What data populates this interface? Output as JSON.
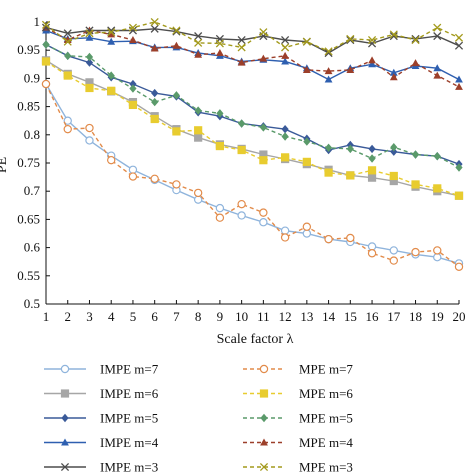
{
  "chart_data": {
    "type": "line",
    "title": "",
    "xlabel": "Scale factor λ",
    "ylabel": "PE",
    "xlim": [
      1,
      20
    ],
    "ylim": [
      0.5,
      1.0
    ],
    "x": [
      1,
      2,
      3,
      4,
      5,
      6,
      7,
      8,
      9,
      10,
      11,
      12,
      13,
      14,
      15,
      16,
      17,
      18,
      19,
      20
    ],
    "x_ticks": [
      "1",
      "2",
      "3",
      "4",
      "5",
      "6",
      "7",
      "8",
      "9",
      "10",
      "11",
      "12",
      "13",
      "14",
      "15",
      "16",
      "17",
      "18",
      "19",
      "20"
    ],
    "y_ticks": [
      "0.5",
      "0.55",
      "0.6",
      "0.65",
      "0.7",
      "0.75",
      "0.8",
      "0.85",
      "0.9",
      "0.95",
      "1"
    ],
    "grid": false,
    "legend_position": "bottom",
    "series": [
      {
        "name": "IMPE m=7",
        "color": "#8fb4dc",
        "dashed": false,
        "marker": "circle-open",
        "values": [
          0.89,
          0.825,
          0.79,
          0.763,
          0.738,
          0.72,
          0.702,
          0.685,
          0.67,
          0.657,
          0.645,
          0.63,
          0.625,
          0.615,
          0.61,
          0.602,
          0.595,
          0.588,
          0.583,
          0.572
        ]
      },
      {
        "name": "MPE m=7",
        "color": "#e28b4a",
        "dashed": true,
        "marker": "circle-open",
        "values": [
          0.89,
          0.81,
          0.812,
          0.755,
          0.726,
          0.722,
          0.712,
          0.697,
          0.653,
          0.677,
          0.662,
          0.618,
          0.637,
          0.615,
          0.617,
          0.59,
          0.577,
          0.592,
          0.595,
          0.566
        ]
      },
      {
        "name": "IMPE m=6",
        "color": "#a6a6a6",
        "dashed": false,
        "marker": "square",
        "values": [
          0.932,
          0.908,
          0.893,
          0.877,
          0.858,
          0.833,
          0.81,
          0.795,
          0.783,
          0.775,
          0.765,
          0.757,
          0.748,
          0.738,
          0.728,
          0.724,
          0.718,
          0.708,
          0.7,
          0.692
        ]
      },
      {
        "name": "MPE m=6",
        "color": "#e8cc2f",
        "dashed": true,
        "marker": "square",
        "values": [
          0.93,
          0.905,
          0.883,
          0.878,
          0.853,
          0.828,
          0.806,
          0.808,
          0.78,
          0.773,
          0.755,
          0.76,
          0.752,
          0.733,
          0.728,
          0.737,
          0.727,
          0.712,
          0.705,
          0.692
        ]
      },
      {
        "name": "IMPE m=5",
        "color": "#3a5a99",
        "dashed": false,
        "marker": "diamond",
        "values": [
          0.96,
          0.94,
          0.928,
          0.902,
          0.89,
          0.874,
          0.868,
          0.84,
          0.833,
          0.82,
          0.815,
          0.81,
          0.793,
          0.773,
          0.782,
          0.775,
          0.77,
          0.765,
          0.762,
          0.748
        ]
      },
      {
        "name": "MPE m=5",
        "color": "#5a9a6a",
        "dashed": true,
        "marker": "diamond",
        "values": [
          0.96,
          0.94,
          0.938,
          0.905,
          0.882,
          0.858,
          0.87,
          0.843,
          0.838,
          0.82,
          0.813,
          0.797,
          0.788,
          0.777,
          0.775,
          0.758,
          0.778,
          0.765,
          0.762,
          0.742
        ]
      },
      {
        "name": "IMPE m=4",
        "color": "#2e5fb0",
        "dashed": false,
        "marker": "triangle",
        "values": [
          0.985,
          0.97,
          0.972,
          0.965,
          0.966,
          0.955,
          0.955,
          0.945,
          0.94,
          0.93,
          0.933,
          0.93,
          0.918,
          0.898,
          0.918,
          0.925,
          0.91,
          0.922,
          0.918,
          0.898
        ]
      },
      {
        "name": "MPE m=4",
        "color": "#9c3f2a",
        "dashed": true,
        "marker": "triangle",
        "values": [
          0.99,
          0.968,
          0.985,
          0.978,
          0.968,
          0.953,
          0.958,
          0.942,
          0.945,
          0.928,
          0.935,
          0.94,
          0.915,
          0.913,
          0.915,
          0.932,
          0.902,
          0.927,
          0.905,
          0.885
        ]
      },
      {
        "name": "IMPE m=3",
        "color": "#4d4d4d",
        "dashed": false,
        "marker": "x",
        "values": [
          0.99,
          0.98,
          0.985,
          0.985,
          0.985,
          0.988,
          0.983,
          0.975,
          0.97,
          0.968,
          0.975,
          0.968,
          0.965,
          0.945,
          0.968,
          0.962,
          0.975,
          0.97,
          0.975,
          0.958
        ]
      },
      {
        "name": "MPE m=3",
        "color": "#a39a1c",
        "dashed": true,
        "marker": "x",
        "values": [
          0.995,
          0.965,
          0.98,
          0.982,
          0.99,
          1.0,
          0.985,
          0.963,
          0.962,
          0.955,
          0.982,
          0.955,
          0.965,
          0.948,
          0.97,
          0.968,
          0.978,
          0.968,
          0.99,
          0.972
        ]
      }
    ]
  }
}
